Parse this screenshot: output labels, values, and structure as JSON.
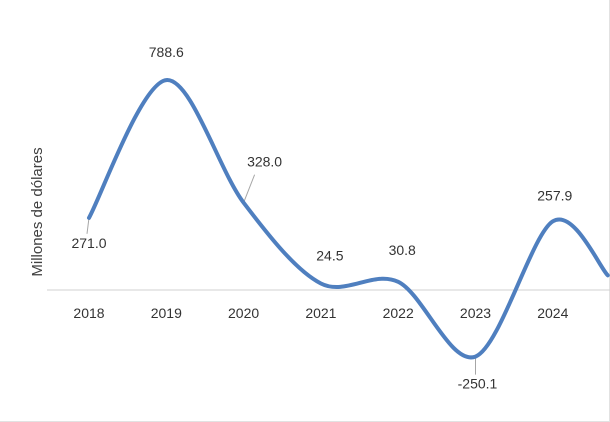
{
  "chart_data": {
    "type": "line",
    "title": "",
    "xlabel": "",
    "ylabel": "Millones de dólares",
    "categories": [
      "2018",
      "2019",
      "2020",
      "2021",
      "2022",
      "2023",
      "2024"
    ],
    "series": [
      {
        "values": [
          271.0,
          788.6,
          328.0,
          24.5,
          30.8,
          -250.1,
          257.9
        ],
        "labels": [
          "271.0",
          "788.6",
          "328.0",
          "24.5",
          "30.8",
          "-250.1",
          "257.9"
        ]
      }
    ],
    "ylim": [
      -300,
      900
    ],
    "grid": false,
    "legend": "none",
    "colors": {
      "line": "#4f7fbf",
      "axis": "#d0d0d0",
      "leader": "#a6a6a6"
    }
  }
}
